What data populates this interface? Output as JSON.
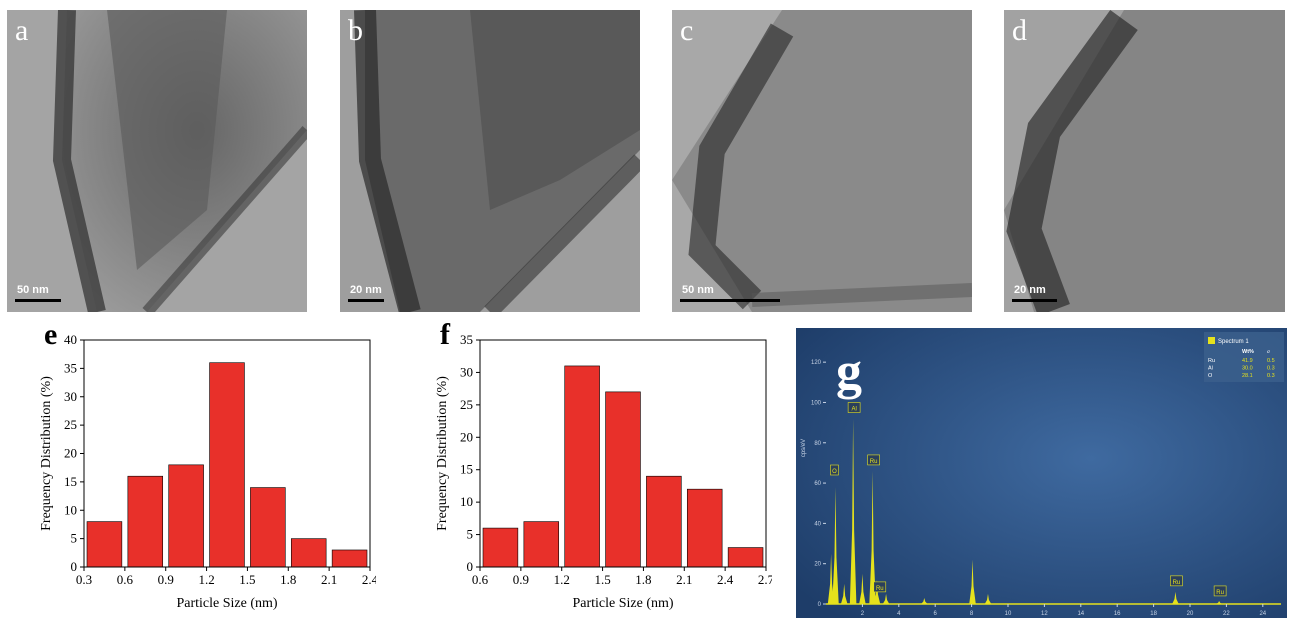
{
  "panels": {
    "a": {
      "letter": "a",
      "scale": "50 nm"
    },
    "b": {
      "letter": "b",
      "scale": "20 nm"
    },
    "c": {
      "letter": "c",
      "scale": "50 nm"
    },
    "d": {
      "letter": "d",
      "scale": "20 nm"
    },
    "e": {
      "letter": "e"
    },
    "f": {
      "letter": "f"
    },
    "g": {
      "letter": "g"
    }
  },
  "chart_data": [
    {
      "type": "bar",
      "panel": "e",
      "xlabel": "Particle Size (nm)",
      "ylabel": "Frequency Distribution (%)",
      "xlim": [
        0.3,
        2.4
      ],
      "ylim": [
        0,
        40
      ],
      "xticks": [
        "0.3",
        "0.6",
        "0.9",
        "1.2",
        "1.5",
        "1.8",
        "2.1",
        "2.4"
      ],
      "yticks": [
        "0",
        "5",
        "10",
        "15",
        "20",
        "25",
        "30",
        "35",
        "40"
      ],
      "bin_centers": [
        0.45,
        0.75,
        1.05,
        1.35,
        1.65,
        1.95,
        2.25
      ],
      "values": [
        8,
        16,
        18,
        36,
        14,
        5,
        3
      ],
      "color": "#e8302a"
    },
    {
      "type": "bar",
      "panel": "f",
      "xlabel": "Particle Size (nm)",
      "ylabel": "Frequency Distribution (%)",
      "xlim": [
        0.6,
        2.7
      ],
      "ylim": [
        0,
        35
      ],
      "xticks": [
        "0.6",
        "0.9",
        "1.2",
        "1.5",
        "1.8",
        "2.1",
        "2.4",
        "2.7"
      ],
      "yticks": [
        "0",
        "5",
        "10",
        "15",
        "20",
        "25",
        "30",
        "35"
      ],
      "bin_centers": [
        0.75,
        1.05,
        1.35,
        1.65,
        1.95,
        2.25,
        2.55
      ],
      "values": [
        6,
        7,
        31,
        27,
        14,
        12,
        3
      ],
      "color": "#e8302a"
    },
    {
      "type": "area",
      "panel": "g",
      "ylabel": "cps/eV",
      "xlim": [
        0,
        25
      ],
      "ylim": [
        0,
        130
      ],
      "xticks": [
        "2",
        "4",
        "6",
        "8",
        "10",
        "12",
        "14",
        "16",
        "18",
        "20",
        "22",
        "24"
      ],
      "yticks": [
        "0",
        "20",
        "40",
        "60",
        "80",
        "100",
        "120"
      ],
      "peaks": [
        {
          "x": 0.28,
          "y": 25
        },
        {
          "x": 0.52,
          "y": 58
        },
        {
          "x": 1.0,
          "y": 10
        },
        {
          "x": 1.49,
          "y": 92
        },
        {
          "x": 2.0,
          "y": 15
        },
        {
          "x": 2.56,
          "y": 66
        },
        {
          "x": 2.8,
          "y": 12
        },
        {
          "x": 3.3,
          "y": 5
        },
        {
          "x": 5.4,
          "y": 3
        },
        {
          "x": 8.05,
          "y": 22
        },
        {
          "x": 8.9,
          "y": 5
        },
        {
          "x": 19.2,
          "y": 6
        },
        {
          "x": 21.6,
          "y": 1.5
        }
      ],
      "peak_labels": [
        {
          "text": "O",
          "x": 0.52,
          "y": 65
        },
        {
          "text": "Al",
          "x": 1.49,
          "y": 96
        },
        {
          "text": "Ru",
          "x": 2.56,
          "y": 70
        },
        {
          "text": "Ru",
          "x": 2.9,
          "y": 7
        },
        {
          "text": "Ru",
          "x": 19.2,
          "y": 10
        },
        {
          "text": "Ru",
          "x": 21.6,
          "y": 5
        }
      ],
      "legend": {
        "series": "Spectrum 1",
        "headers": [
          "Wt%",
          "σ"
        ],
        "rows": [
          {
            "element": "Ru",
            "wt": "41.9",
            "sigma": "0.5"
          },
          {
            "element": "Al",
            "wt": "30.0",
            "sigma": "0.3"
          },
          {
            "element": "O",
            "wt": "28.1",
            "sigma": "0.3"
          }
        ]
      },
      "colors": {
        "background": "#1e3d69",
        "spectrum": "#e6e21c",
        "text": "#c8d4e6"
      }
    }
  ]
}
